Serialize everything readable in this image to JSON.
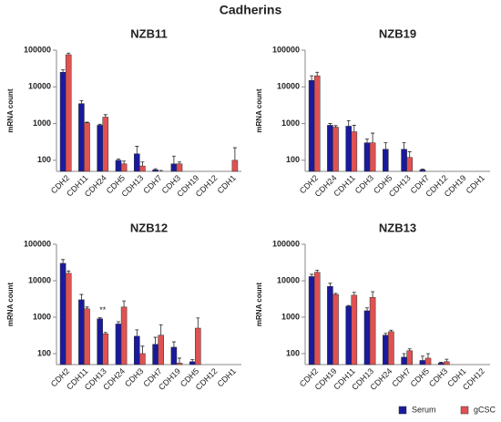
{
  "title": "Cadherins",
  "legend": "lower right",
  "chart_data": [
    {
      "type": "bar",
      "title": "NZB11",
      "ylabel": "mRNA count",
      "log": true,
      "ylim": [
        50,
        100000
      ],
      "yticks": [
        100,
        1000,
        10000,
        100000
      ],
      "categories": [
        "CDH2",
        "CDH11",
        "CDH24",
        "CDH5",
        "CDH13",
        "CDH7",
        "CDH3",
        "CDH19",
        "CDH12",
        "CDH1"
      ],
      "series": [
        {
          "name": "Serum",
          "color": "#1a1a9c",
          "values": [
            25000,
            3500,
            900,
            100,
            150,
            55,
            80,
            null,
            null,
            null
          ],
          "errors": [
            4000,
            700,
            60,
            8,
            90,
            4,
            50,
            null,
            null,
            null
          ]
        },
        {
          "name": "gCSC",
          "color": "#e05252",
          "values": [
            75000,
            1050,
            1500,
            80,
            70,
            50,
            80,
            null,
            null,
            100
          ],
          "errors": [
            8000,
            40,
            250,
            15,
            20,
            3,
            10,
            null,
            null,
            120
          ]
        }
      ]
    },
    {
      "type": "bar",
      "title": "NZB19",
      "ylabel": "mRNA count",
      "log": true,
      "ylim": [
        50,
        100000
      ],
      "yticks": [
        100,
        1000,
        10000,
        100000
      ],
      "categories": [
        "CDH2",
        "CDH24",
        "CDH11",
        "CDH3",
        "CDH5",
        "CDH13",
        "CDH7",
        "CDH12",
        "CDH19",
        "CDH1"
      ],
      "series": [
        {
          "name": "Serum",
          "color": "#1a1a9c",
          "values": [
            15000,
            900,
            850,
            300,
            200,
            200,
            55,
            null,
            null,
            null
          ],
          "errors": [
            5000,
            100,
            350,
            80,
            100,
            100,
            3,
            null,
            null,
            null
          ]
        },
        {
          "name": "gCSC",
          "color": "#e05252",
          "values": [
            20000,
            800,
            600,
            300,
            null,
            120,
            null,
            null,
            null,
            null
          ],
          "errors": [
            5000,
            80,
            300,
            250,
            null,
            50,
            null,
            null,
            null,
            null
          ]
        }
      ]
    },
    {
      "type": "bar",
      "title": "NZB12",
      "ylabel": "mRNA count",
      "log": true,
      "ylim": [
        50,
        100000
      ],
      "yticks": [
        100,
        1000,
        10000,
        100000
      ],
      "categories": [
        "CDH2",
        "CDH11",
        "CDH13",
        "CDH24",
        "CDH3",
        "CDH7",
        "CDH19",
        "CDH5",
        "CDH12",
        "CDH1"
      ],
      "series": [
        {
          "name": "Serum",
          "color": "#1a1a9c",
          "values": [
            30000,
            3000,
            900,
            650,
            300,
            180,
            150,
            60,
            null,
            null
          ],
          "errors": [
            8000,
            1200,
            60,
            100,
            150,
            100,
            60,
            8,
            null,
            null
          ]
        },
        {
          "name": "gCSC",
          "color": "#e05252",
          "values": [
            16000,
            1700,
            350,
            1900,
            100,
            320,
            55,
            500,
            null,
            null
          ],
          "errors": [
            2500,
            200,
            30,
            900,
            60,
            300,
            20,
            450,
            null,
            null
          ]
        }
      ],
      "annotations": [
        {
          "text": "**",
          "x": "CDH13"
        }
      ]
    },
    {
      "type": "bar",
      "title": "NZB13",
      "ylabel": "mRNA count",
      "log": true,
      "ylim": [
        50,
        100000
      ],
      "yticks": [
        100,
        1000,
        10000,
        100000
      ],
      "categories": [
        "CDH2",
        "CDH19",
        "CDH11",
        "CDH13",
        "CDH24",
        "CDH7",
        "CDH5",
        "CDH3",
        "CDH1",
        "CDH12"
      ],
      "series": [
        {
          "name": "Serum",
          "color": "#1a1a9c",
          "values": [
            13000,
            7000,
            2000,
            1500,
            320,
            80,
            65,
            55,
            null,
            null
          ],
          "errors": [
            2000,
            1500,
            100,
            300,
            40,
            20,
            20,
            3,
            null,
            null
          ]
        },
        {
          "name": "gCSC",
          "color": "#e05252",
          "values": [
            17000,
            4200,
            4000,
            3500,
            400,
            120,
            75,
            60,
            null,
            null
          ],
          "errors": [
            2500,
            300,
            800,
            1500,
            40,
            15,
            25,
            10,
            null,
            null
          ]
        }
      ]
    }
  ]
}
